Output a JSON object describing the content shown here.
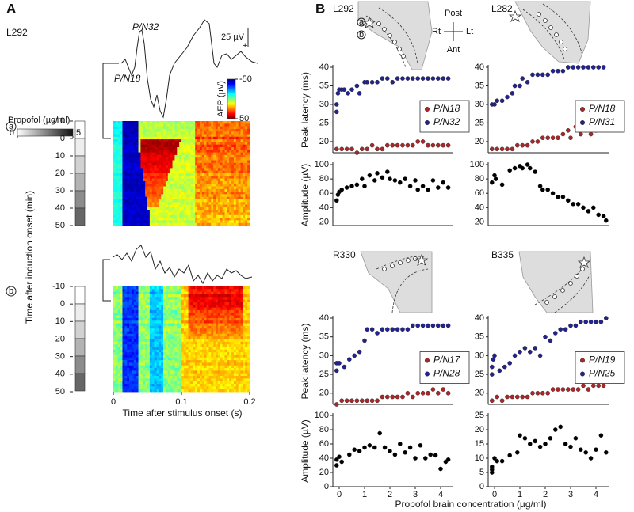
{
  "chart_data": [
    {
      "type": "heatmap",
      "panel": "A",
      "subject": "L292",
      "xlabel": "Time after stimulus onset (s)",
      "ylabel": "Time after induction onset (min)",
      "xlim": [
        0,
        0.2
      ],
      "xticks": [
        0,
        0.1,
        0.2
      ],
      "ylim": [
        -10,
        50
      ],
      "yticks": [
        -10,
        0,
        10,
        20,
        30,
        40,
        50
      ],
      "colorbar_label": "AEP (µV)",
      "colorbar_ticks": [
        -50,
        50
      ],
      "dose_label": "Propofol (µg/ml)",
      "dose_ticks": [
        0,
        5
      ],
      "row_labels": [
        "a",
        "b"
      ],
      "peak_labels": [
        "P/N32",
        "P/N18"
      ],
      "scale_label": "25 µV",
      "polarity": "+"
    },
    {
      "type": "scatter",
      "panel": "B",
      "title": "L292",
      "ylabel": "Peak latency (ms)",
      "orientation": {
        "post": "Post",
        "ant": "Ant",
        "rt": "Rt",
        "lt": "Lt"
      },
      "xlim": [
        -0.25,
        4.5
      ],
      "ylim": [
        17,
        40
      ],
      "yticks": [
        20,
        25,
        30,
        35,
        40
      ],
      "legend": "center right",
      "series": [
        {
          "name": "P/N18",
          "color": "#a8282a",
          "x": [
            -0.1,
            0.1,
            0.3,
            0.5,
            0.7,
            0.9,
            1.1,
            1.3,
            1.5,
            1.7,
            1.9,
            2.1,
            2.3,
            2.5,
            2.7,
            2.9,
            3.1,
            3.3,
            3.5,
            3.7,
            3.9,
            4.1,
            4.3
          ],
          "values": [
            18,
            18,
            18,
            18,
            17,
            18,
            18,
            19,
            18,
            18,
            19,
            19,
            19,
            19,
            19,
            19,
            20,
            20,
            19,
            19,
            19,
            19,
            19
          ]
        },
        {
          "name": "P/N32",
          "color": "#23238c",
          "x": [
            -0.1,
            -0.1,
            -0.05,
            0,
            0.1,
            0.2,
            0.35,
            0.5,
            0.7,
            0.8,
            1.0,
            1.1,
            1.3,
            1.5,
            1.7,
            1.9,
            2.1,
            2.3,
            2.5,
            2.7,
            2.9,
            3.1,
            3.3,
            3.5,
            3.7,
            3.9,
            4.1,
            4.3
          ],
          "values": [
            28,
            30,
            33,
            34,
            34,
            34,
            33,
            34,
            35,
            33,
            36,
            36,
            36,
            36,
            37,
            37,
            36,
            37,
            37,
            37,
            37,
            37,
            37,
            37,
            37,
            37,
            37,
            37
          ]
        }
      ]
    },
    {
      "type": "scatter",
      "ylabel": "Amplitude (µV)",
      "xlim": [
        -0.25,
        4.5
      ],
      "ylim": [
        15,
        100
      ],
      "yticks": [
        20,
        40,
        60,
        80,
        100
      ],
      "series": [
        {
          "color": "#000000",
          "x": [
            -0.1,
            -0.05,
            0,
            0.1,
            0.3,
            0.5,
            0.7,
            0.9,
            1.0,
            1.2,
            1.4,
            1.5,
            1.7,
            1.9,
            2.0,
            2.2,
            2.4,
            2.6,
            2.8,
            3.0,
            3.1,
            3.3,
            3.5,
            3.7,
            3.9,
            4.1,
            4.3
          ],
          "values": [
            50,
            58,
            62,
            65,
            68,
            70,
            72,
            80,
            70,
            85,
            78,
            88,
            82,
            90,
            80,
            78,
            75,
            80,
            70,
            78,
            65,
            70,
            65,
            78,
            68,
            75,
            68
          ]
        }
      ]
    },
    {
      "type": "scatter",
      "title": "L282",
      "xlim": [
        -0.25,
        4.5
      ],
      "ylim": [
        17,
        40
      ],
      "yticks": [
        20,
        25,
        30,
        35,
        40
      ],
      "legend": "center right",
      "series": [
        {
          "name": "P/N18",
          "color": "#a8282a",
          "x": [
            -0.1,
            0.1,
            0.3,
            0.5,
            0.7,
            0.9,
            1.1,
            1.3,
            1.5,
            1.7,
            1.9,
            2.1,
            2.3,
            2.5,
            2.7,
            2.9,
            3.0,
            3.2,
            3.4,
            3.6,
            3.8,
            4.0,
            4.2,
            4.4
          ],
          "values": [
            18,
            18,
            18,
            18,
            18,
            19,
            19,
            19,
            20,
            20,
            21,
            21,
            21,
            21,
            22,
            23,
            21,
            24,
            22,
            23,
            22,
            23,
            24,
            25
          ]
        },
        {
          "name": "P/N31",
          "color": "#23238c",
          "x": [
            -0.1,
            0,
            0.1,
            0.3,
            0.5,
            0.7,
            0.8,
            1.0,
            1.1,
            1.3,
            1.5,
            1.7,
            1.9,
            2.1,
            2.3,
            2.5,
            2.7,
            2.9,
            3.1,
            3.3,
            3.5,
            3.7,
            3.9,
            4.1,
            4.3
          ],
          "values": [
            30,
            30,
            31,
            31,
            32,
            33,
            35,
            35,
            37,
            36,
            38,
            38,
            38,
            38,
            39,
            39,
            39,
            40,
            40,
            40,
            40,
            40,
            40,
            40,
            40
          ]
        }
      ]
    },
    {
      "type": "scatter",
      "xlim": [
        -0.25,
        4.5
      ],
      "ylim": [
        15,
        100
      ],
      "yticks": [
        20,
        40,
        60,
        80,
        100
      ],
      "series": [
        {
          "color": "#000000",
          "x": [
            -0.1,
            0,
            0.05,
            0.3,
            0.6,
            0.8,
            1.0,
            1.1,
            1.3,
            1.4,
            1.6,
            1.8,
            1.9,
            2.1,
            2.3,
            2.5,
            2.7,
            2.9,
            3.1,
            3.3,
            3.5,
            3.7,
            3.9,
            4.1,
            4.3,
            4.4
          ],
          "values": [
            75,
            85,
            80,
            72,
            92,
            95,
            98,
            95,
            100,
            95,
            90,
            70,
            65,
            65,
            60,
            55,
            55,
            50,
            45,
            45,
            40,
            35,
            40,
            30,
            28,
            22
          ]
        }
      ]
    },
    {
      "type": "scatter",
      "title": "R330",
      "ylabel": "Peak latency (ms)",
      "xlim": [
        -0.25,
        4.5
      ],
      "ylim": [
        17,
        40
      ],
      "yticks": [
        20,
        25,
        30,
        35,
        40
      ],
      "legend": "center right",
      "series": [
        {
          "name": "P/N17",
          "color": "#a8282a",
          "x": [
            -0.1,
            0.1,
            0.3,
            0.5,
            0.7,
            0.9,
            1.1,
            1.3,
            1.5,
            1.7,
            1.9,
            2.1,
            2.3,
            2.5,
            2.7,
            2.9,
            3.1,
            3.3,
            3.5,
            3.7,
            3.9,
            4.1,
            4.3
          ],
          "values": [
            17,
            18,
            18,
            18,
            18,
            18,
            18,
            18,
            18,
            19,
            19,
            19,
            19,
            19,
            20,
            19,
            20,
            20,
            20,
            21,
            20,
            21,
            20
          ]
        },
        {
          "name": "P/N28",
          "color": "#23238c",
          "x": [
            -0.1,
            -0.1,
            0,
            0.2,
            0.4,
            0.6,
            0.8,
            1.0,
            1.1,
            1.3,
            1.5,
            1.7,
            1.9,
            2.1,
            2.3,
            2.5,
            2.7,
            2.9,
            3.1,
            3.3,
            3.5,
            3.7,
            3.9,
            4.1,
            4.3
          ],
          "values": [
            26,
            28,
            28,
            27,
            29,
            30,
            31,
            34,
            37,
            37,
            36,
            37,
            37,
            37,
            37,
            37,
            37,
            38,
            38,
            38,
            38,
            38,
            38,
            38,
            38
          ]
        }
      ]
    },
    {
      "type": "scatter",
      "ylabel": "Amplitude (µV)",
      "xlabel": "Propofol brain concentration (µg/ml)",
      "xlim": [
        -0.25,
        4.5
      ],
      "xticks": [
        0,
        1,
        2,
        3,
        4
      ],
      "ylim": [
        0,
        100
      ],
      "yticks": [
        0,
        20,
        40,
        60,
        80,
        100
      ],
      "series": [
        {
          "color": "#000000",
          "x": [
            -0.1,
            -0.1,
            0,
            0.1,
            0.4,
            0.6,
            0.8,
            1.0,
            1.2,
            1.4,
            1.6,
            1.8,
            2.0,
            2.2,
            2.4,
            2.6,
            2.8,
            3.0,
            3.2,
            3.4,
            3.6,
            3.8,
            4.0,
            4.2,
            4.3
          ],
          "values": [
            30,
            38,
            42,
            35,
            45,
            52,
            50,
            55,
            58,
            55,
            75,
            55,
            50,
            45,
            60,
            48,
            55,
            40,
            58,
            40,
            45,
            44,
            25,
            35,
            38
          ]
        }
      ]
    },
    {
      "type": "scatter",
      "title": "B335",
      "xlim": [
        -0.25,
        4.5
      ],
      "ylim": [
        17,
        40
      ],
      "yticks": [
        20,
        25,
        30,
        35,
        40
      ],
      "legend": "center right",
      "series": [
        {
          "name": "P/N19",
          "color": "#a8282a",
          "x": [
            -0.1,
            0.1,
            0.3,
            0.5,
            0.7,
            0.9,
            1.1,
            1.3,
            1.5,
            1.7,
            1.9,
            2.1,
            2.3,
            2.5,
            2.7,
            2.9,
            3.1,
            3.3,
            3.5,
            3.7,
            3.9,
            4.1,
            4.3
          ],
          "values": [
            18,
            19,
            18,
            19,
            19,
            19,
            19,
            19,
            20,
            20,
            20,
            20,
            21,
            21,
            21,
            21,
            21,
            21,
            22,
            21,
            22,
            22,
            22
          ]
        },
        {
          "name": "P/N25",
          "color": "#23238c",
          "x": [
            -0.1,
            -0.1,
            -0.05,
            0,
            0.2,
            0.4,
            0.6,
            0.8,
            1.0,
            1.2,
            1.4,
            1.6,
            1.8,
            2.0,
            2.2,
            2.4,
            2.6,
            2.8,
            3.0,
            3.2,
            3.4,
            3.6,
            3.8,
            4.0,
            4.2,
            4.4
          ],
          "values": [
            25,
            27,
            29,
            30,
            26,
            27,
            28,
            30,
            31,
            32,
            31,
            32,
            30,
            35,
            34,
            36,
            37,
            37,
            38,
            38,
            39,
            39,
            39,
            39,
            39,
            40
          ]
        }
      ]
    },
    {
      "type": "scatter",
      "xlim": [
        -0.25,
        4.5
      ],
      "xticks": [
        0,
        1,
        2,
        3,
        4
      ],
      "ylim": [
        0,
        25
      ],
      "yticks": [
        0,
        5,
        10,
        15,
        20,
        25
      ],
      "series": [
        {
          "color": "#000000",
          "x": [
            -0.1,
            -0.1,
            -0.1,
            0,
            0.1,
            0.3,
            0.6,
            0.9,
            1.0,
            1.2,
            1.4,
            1.6,
            1.8,
            2.0,
            2.2,
            2.4,
            2.6,
            2.8,
            3.0,
            3.2,
            3.4,
            3.6,
            3.8,
            4.0,
            4.2,
            4.4
          ],
          "values": [
            5,
            6,
            7,
            10,
            9,
            9,
            11,
            12,
            18,
            17,
            15,
            16,
            14,
            15,
            17,
            20,
            21,
            15,
            14,
            17,
            13,
            12,
            10,
            13,
            18,
            12
          ]
        }
      ]
    }
  ]
}
